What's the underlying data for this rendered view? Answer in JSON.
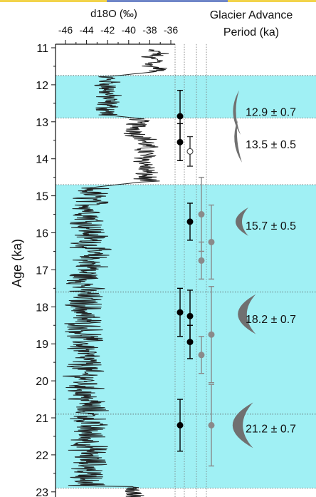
{
  "chart_data": {
    "type": "line",
    "title_left": "d18O (‰)",
    "title_right_line1": "Glacier Advance",
    "title_right_line2": "Period (ka)",
    "ylabel": "Age (ka)",
    "ylim": [
      11,
      23.2
    ],
    "y_ticks": [
      "11",
      "12",
      "13",
      "14",
      "15",
      "16",
      "17",
      "18",
      "19",
      "20",
      "21",
      "22",
      "23"
    ],
    "x_ticks": [
      "-46",
      "-44",
      "-42",
      "-40",
      "-38",
      "-36"
    ],
    "xlim": [
      -47.5,
      -35.5
    ],
    "shaded_intervals": [
      [
        11.75,
        12.9
      ],
      [
        14.7,
        22.9
      ]
    ],
    "advance_periods": [
      {
        "label": "12.9 ± 0.7",
        "age": 12.9
      },
      {
        "label": "13.5 ± 0.5",
        "age": 13.5
      },
      {
        "label": "15.7 ± 0.5",
        "age": 15.7
      },
      {
        "label": "18.2 ± 0.7",
        "age": 18.2
      },
      {
        "label": "21.2 ± 0.7",
        "age": 21.2
      }
    ],
    "ages_black": [
      {
        "col": 0,
        "age": 12.85,
        "err": 0.7
      },
      {
        "col": 0,
        "age": 13.55,
        "err": 0.5
      },
      {
        "col": 0,
        "age": 18.15,
        "err": 0.65
      },
      {
        "col": 0,
        "age": 21.2,
        "err": 0.7
      },
      {
        "col": 1,
        "age": 15.7,
        "err": 0.5
      },
      {
        "col": 1,
        "age": 18.25,
        "err": 0.7
      },
      {
        "col": 1,
        "age": 18.95,
        "err": 0.45
      }
    ],
    "ages_open": [
      {
        "col": 1,
        "age": 13.8,
        "err": 0.4
      }
    ],
    "ages_grey": [
      {
        "col": 2,
        "age": 15.5,
        "err": 1.0
      },
      {
        "col": 2,
        "age": 16.75,
        "err": 0.5
      },
      {
        "col": 2,
        "age": 19.3,
        "err": 0.5
      },
      {
        "col": 3,
        "age": 16.25,
        "err": 1.0
      },
      {
        "col": 3,
        "age": 18.75,
        "err": 1.3
      },
      {
        "col": 3,
        "age": 21.2,
        "err": 1.1
      }
    ],
    "colors": {
      "shade": "#a0f0f4",
      "line": "#222222",
      "black_point": "#000000",
      "grey_point": "#8a8a8a",
      "crescent": "#707070"
    }
  }
}
